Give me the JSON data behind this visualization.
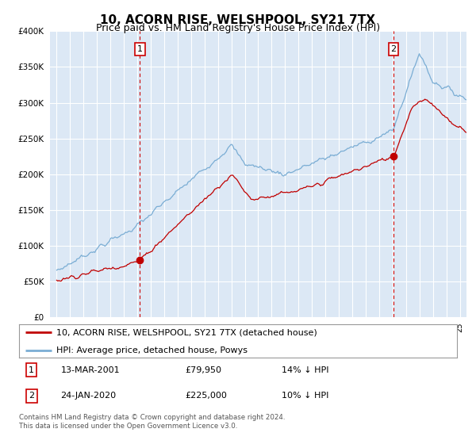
{
  "title": "10, ACORN RISE, WELSHPOOL, SY21 7TX",
  "subtitle": "Price paid vs. HM Land Registry's House Price Index (HPI)",
  "hpi_label": "HPI: Average price, detached house, Powys",
  "property_label": "10, ACORN RISE, WELSHPOOL, SY21 7TX (detached house)",
  "footer1": "Contains HM Land Registry data © Crown copyright and database right 2024.",
  "footer2": "This data is licensed under the Open Government Licence v3.0.",
  "transaction1": {
    "num": "1",
    "date": "13-MAR-2001",
    "price": "£79,950",
    "note": "14% ↓ HPI"
  },
  "transaction2": {
    "num": "2",
    "date": "24-JAN-2020",
    "price": "£225,000",
    "note": "10% ↓ HPI"
  },
  "vline1_x": 2001.2,
  "vline2_x": 2020.07,
  "sale1_x": 2001.2,
  "sale1_y": 79950,
  "sale2_x": 2020.07,
  "sale2_y": 225000,
  "ylim": [
    0,
    400000
  ],
  "xlim": [
    1994.5,
    2025.5
  ],
  "background_color": "#dce8f5",
  "hpi_color": "#7aadd4",
  "property_color": "#c00000",
  "vline_color": "#cc0000",
  "grid_color": "#ffffff",
  "title_fontsize": 11,
  "subtitle_fontsize": 9
}
